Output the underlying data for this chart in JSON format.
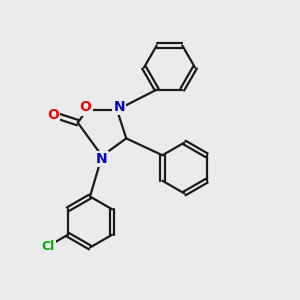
{
  "background_color": "#ebebeb",
  "bond_color": "#1a1a1a",
  "bond_width": 1.6,
  "atom_colors": {
    "O": "#ff0000",
    "N": "#0000cc",
    "C": "#1a1a1a",
    "Cl": "#00aa00"
  },
  "font_size_atom": 10,
  "font_size_cl": 9,
  "figsize": [
    3.0,
    3.0
  ],
  "dpi": 100
}
